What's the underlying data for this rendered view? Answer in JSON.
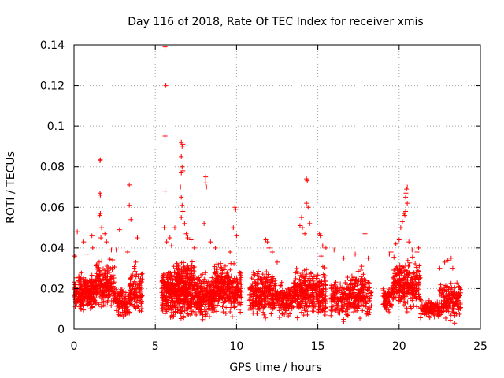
{
  "chart_data": {
    "type": "scatter",
    "title": "Day 116 of 2018, Rate Of TEC Index for receiver xmis",
    "xlabel": "GPS time / hours",
    "ylabel": "ROTI / TECUs",
    "xlim": [
      0,
      25
    ],
    "ylim": [
      0,
      0.14
    ],
    "x_ticks": [
      0,
      5,
      10,
      15,
      20,
      25
    ],
    "y_ticks": [
      0,
      0.02,
      0.04,
      0.06,
      0.08,
      0.1,
      0.12,
      0.14
    ],
    "x_tick_labels": [
      "0",
      "5",
      "10",
      "15",
      "20",
      "25"
    ],
    "y_tick_labels": [
      "0",
      "0.02",
      "0.04",
      "0.06",
      "0.08",
      "0.1",
      "0.12",
      "0.14"
    ],
    "grid": true,
    "marker": "+",
    "series_color": "#ff0000",
    "clusters": [
      {
        "x0": 0.0,
        "x1": 1.3,
        "base": 0.018,
        "spread": 0.009,
        "n": 240
      },
      {
        "x0": 1.3,
        "x1": 2.5,
        "base": 0.022,
        "spread": 0.011,
        "n": 200
      },
      {
        "x0": 2.5,
        "x1": 3.0,
        "base": 0.014,
        "spread": 0.007,
        "n": 70
      },
      {
        "x0": 3.0,
        "x1": 3.4,
        "base": 0.012,
        "spread": 0.007,
        "n": 40
      },
      {
        "x0": 3.4,
        "x1": 4.2,
        "base": 0.018,
        "spread": 0.011,
        "n": 120
      },
      {
        "x0": 5.4,
        "x1": 6.3,
        "base": 0.018,
        "spread": 0.012,
        "n": 220
      },
      {
        "x0": 6.3,
        "x1": 7.4,
        "base": 0.02,
        "spread": 0.014,
        "n": 320
      },
      {
        "x0": 7.4,
        "x1": 8.6,
        "base": 0.016,
        "spread": 0.011,
        "n": 230
      },
      {
        "x0": 8.6,
        "x1": 10.3,
        "base": 0.02,
        "spread": 0.012,
        "n": 300
      },
      {
        "x0": 10.8,
        "x1": 12.4,
        "base": 0.018,
        "spread": 0.011,
        "n": 260
      },
      {
        "x0": 12.4,
        "x1": 13.5,
        "base": 0.014,
        "spread": 0.008,
        "n": 130
      },
      {
        "x0": 13.5,
        "x1": 15.5,
        "base": 0.018,
        "spread": 0.012,
        "n": 320
      },
      {
        "x0": 15.8,
        "x1": 17.0,
        "base": 0.015,
        "spread": 0.01,
        "n": 150
      },
      {
        "x0": 17.0,
        "x1": 18.3,
        "base": 0.017,
        "spread": 0.011,
        "n": 180
      },
      {
        "x0": 19.0,
        "x1": 19.6,
        "base": 0.015,
        "spread": 0.007,
        "n": 70
      },
      {
        "x0": 19.6,
        "x1": 21.3,
        "base": 0.022,
        "spread": 0.012,
        "n": 260
      },
      {
        "x0": 21.3,
        "x1": 22.5,
        "base": 0.01,
        "spread": 0.004,
        "n": 130
      },
      {
        "x0": 22.5,
        "x1": 23.8,
        "base": 0.014,
        "spread": 0.009,
        "n": 170
      }
    ],
    "notable_points": [
      [
        0.05,
        0.036
      ],
      [
        0.2,
        0.048
      ],
      [
        0.6,
        0.043
      ],
      [
        0.8,
        0.037
      ],
      [
        1.1,
        0.046
      ],
      [
        1.15,
        0.04
      ],
      [
        1.6,
        0.083
      ],
      [
        1.62,
        0.0835
      ],
      [
        1.6,
        0.067
      ],
      [
        1.62,
        0.066
      ],
      [
        1.58,
        0.056
      ],
      [
        1.62,
        0.057
      ],
      [
        1.7,
        0.05
      ],
      [
        1.65,
        0.045
      ],
      [
        1.9,
        0.047
      ],
      [
        2.0,
        0.043
      ],
      [
        2.3,
        0.039
      ],
      [
        2.8,
        0.049
      ],
      [
        2.6,
        0.039
      ],
      [
        3.4,
        0.071
      ],
      [
        3.4,
        0.061
      ],
      [
        3.5,
        0.054
      ],
      [
        3.3,
        0.038
      ],
      [
        3.9,
        0.045
      ],
      [
        3.7,
        0.03
      ],
      [
        3.8,
        0.033
      ],
      [
        5.6,
        0.139
      ],
      [
        5.65,
        0.12
      ],
      [
        5.6,
        0.095
      ],
      [
        5.6,
        0.068
      ],
      [
        5.55,
        0.05
      ],
      [
        5.7,
        0.043
      ],
      [
        5.9,
        0.045
      ],
      [
        6.0,
        0.041
      ],
      [
        6.2,
        0.05
      ],
      [
        6.6,
        0.092
      ],
      [
        6.65,
        0.09
      ],
      [
        6.7,
        0.091
      ],
      [
        6.6,
        0.085
      ],
      [
        6.65,
        0.08
      ],
      [
        6.6,
        0.077
      ],
      [
        6.7,
        0.078
      ],
      [
        6.55,
        0.07
      ],
      [
        6.6,
        0.065
      ],
      [
        6.65,
        0.061
      ],
      [
        6.7,
        0.058
      ],
      [
        6.6,
        0.055
      ],
      [
        6.8,
        0.052
      ],
      [
        6.9,
        0.047
      ],
      [
        7.0,
        0.045
      ],
      [
        7.2,
        0.044
      ],
      [
        7.4,
        0.04
      ],
      [
        8.1,
        0.075
      ],
      [
        8.1,
        0.072
      ],
      [
        8.15,
        0.07
      ],
      [
        8.0,
        0.052
      ],
      [
        8.4,
        0.043
      ],
      [
        8.7,
        0.04
      ],
      [
        9.9,
        0.06
      ],
      [
        9.95,
        0.059
      ],
      [
        9.8,
        0.05
      ],
      [
        10.0,
        0.046
      ],
      [
        9.6,
        0.038
      ],
      [
        11.8,
        0.044
      ],
      [
        11.9,
        0.043
      ],
      [
        12.0,
        0.04
      ],
      [
        12.2,
        0.038
      ],
      [
        12.5,
        0.033
      ],
      [
        14.0,
        0.055
      ],
      [
        13.9,
        0.051
      ],
      [
        14.05,
        0.05
      ],
      [
        14.2,
        0.047
      ],
      [
        14.3,
        0.074
      ],
      [
        14.35,
        0.073
      ],
      [
        14.3,
        0.062
      ],
      [
        14.4,
        0.06
      ],
      [
        14.5,
        0.052
      ],
      [
        15.1,
        0.047
      ],
      [
        15.15,
        0.046
      ],
      [
        15.3,
        0.041
      ],
      [
        15.5,
        0.04
      ],
      [
        15.2,
        0.036
      ],
      [
        16.0,
        0.039
      ],
      [
        16.6,
        0.035
      ],
      [
        17.3,
        0.037
      ],
      [
        17.7,
        0.031
      ],
      [
        17.9,
        0.047
      ],
      [
        18.1,
        0.035
      ],
      [
        19.4,
        0.037
      ],
      [
        19.5,
        0.038
      ],
      [
        19.8,
        0.042
      ],
      [
        20.0,
        0.044
      ],
      [
        20.1,
        0.05
      ],
      [
        20.2,
        0.053
      ],
      [
        20.3,
        0.057
      ],
      [
        20.35,
        0.056
      ],
      [
        20.4,
        0.058
      ],
      [
        20.4,
        0.065
      ],
      [
        20.45,
        0.069
      ],
      [
        20.5,
        0.07
      ],
      [
        20.42,
        0.067
      ],
      [
        20.5,
        0.062
      ],
      [
        20.6,
        0.043
      ],
      [
        20.8,
        0.039
      ],
      [
        21.1,
        0.038
      ],
      [
        21.2,
        0.04
      ],
      [
        22.5,
        0.03
      ],
      [
        22.8,
        0.033
      ],
      [
        23.0,
        0.034
      ],
      [
        23.2,
        0.035
      ],
      [
        23.3,
        0.03
      ]
    ]
  }
}
